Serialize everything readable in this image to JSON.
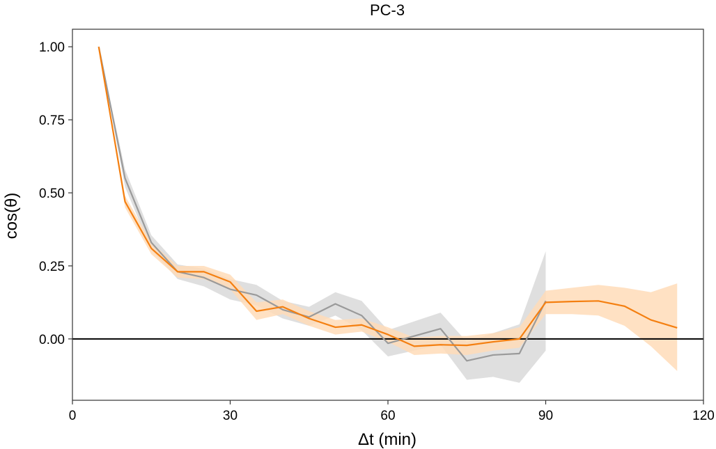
{
  "chart_data": {
    "type": "line",
    "title": "PC-3",
    "xlabel": "Δt (min)",
    "ylabel": "cos(θ)",
    "xlim": [
      0,
      120
    ],
    "ylim": [
      -0.21,
      1.06
    ],
    "x_ticks": [
      {
        "value": 0,
        "label": "0"
      },
      {
        "value": 30,
        "label": "30"
      },
      {
        "value": 60,
        "label": "60"
      },
      {
        "value": 90,
        "label": "90"
      },
      {
        "value": 120,
        "label": "120"
      }
    ],
    "y_ticks": [
      {
        "value": 0,
        "label": "0.00"
      },
      {
        "value": 0.25,
        "label": "0.25"
      },
      {
        "value": 0.5,
        "label": "0.50"
      },
      {
        "value": 0.75,
        "label": "0.75"
      },
      {
        "value": 1,
        "label": "1.00"
      }
    ],
    "reference_line": {
      "y": 0,
      "color": "#000000"
    },
    "grid": false,
    "legend": "none",
    "series": [
      {
        "color": "#9a9a9a",
        "band_color": "#d9d9d9",
        "x": [
          5,
          10,
          15,
          20,
          25,
          30,
          35,
          40,
          45,
          50,
          55,
          60,
          65,
          70,
          75,
          80,
          85,
          90
        ],
        "y": [
          1.0,
          0.55,
          0.33,
          0.23,
          0.21,
          0.17,
          0.15,
          0.1,
          0.075,
          0.12,
          0.08,
          -0.015,
          0.01,
          0.035,
          -0.075,
          -0.055,
          -0.05,
          0.13
        ],
        "lower": [
          1.0,
          0.52,
          0.305,
          0.205,
          0.18,
          0.135,
          0.115,
          0.07,
          0.045,
          0.08,
          0.03,
          -0.06,
          -0.04,
          -0.02,
          -0.14,
          -0.13,
          -0.15,
          -0.04
        ],
        "upper": [
          1.0,
          0.58,
          0.355,
          0.255,
          0.24,
          0.205,
          0.185,
          0.13,
          0.11,
          0.16,
          0.13,
          0.03,
          0.06,
          0.09,
          -0.01,
          0.02,
          0.05,
          0.3
        ]
      },
      {
        "color": "#f47f10",
        "band_color": "#ffdcb8",
        "x": [
          5,
          10,
          15,
          20,
          25,
          30,
          35,
          40,
          45,
          50,
          55,
          60,
          65,
          70,
          75,
          80,
          85,
          90,
          95,
          100,
          105,
          110,
          115
        ],
        "y": [
          1.0,
          0.47,
          0.31,
          0.23,
          0.23,
          0.195,
          0.095,
          0.11,
          0.07,
          0.04,
          0.048,
          0.015,
          -0.025,
          -0.02,
          -0.022,
          -0.01,
          0.0,
          0.125,
          0.128,
          0.13,
          0.112,
          0.065,
          0.038
        ],
        "lower": [
          1.0,
          0.45,
          0.29,
          0.21,
          0.205,
          0.17,
          0.065,
          0.085,
          0.045,
          0.015,
          0.025,
          -0.01,
          -0.055,
          -0.05,
          -0.055,
          -0.04,
          -0.03,
          0.085,
          0.085,
          0.08,
          0.045,
          -0.025,
          -0.11
        ],
        "upper": [
          1.0,
          0.49,
          0.33,
          0.25,
          0.25,
          0.22,
          0.125,
          0.135,
          0.095,
          0.065,
          0.07,
          0.04,
          0.005,
          0.01,
          0.01,
          0.02,
          0.04,
          0.165,
          0.175,
          0.185,
          0.175,
          0.16,
          0.19
        ]
      }
    ]
  }
}
